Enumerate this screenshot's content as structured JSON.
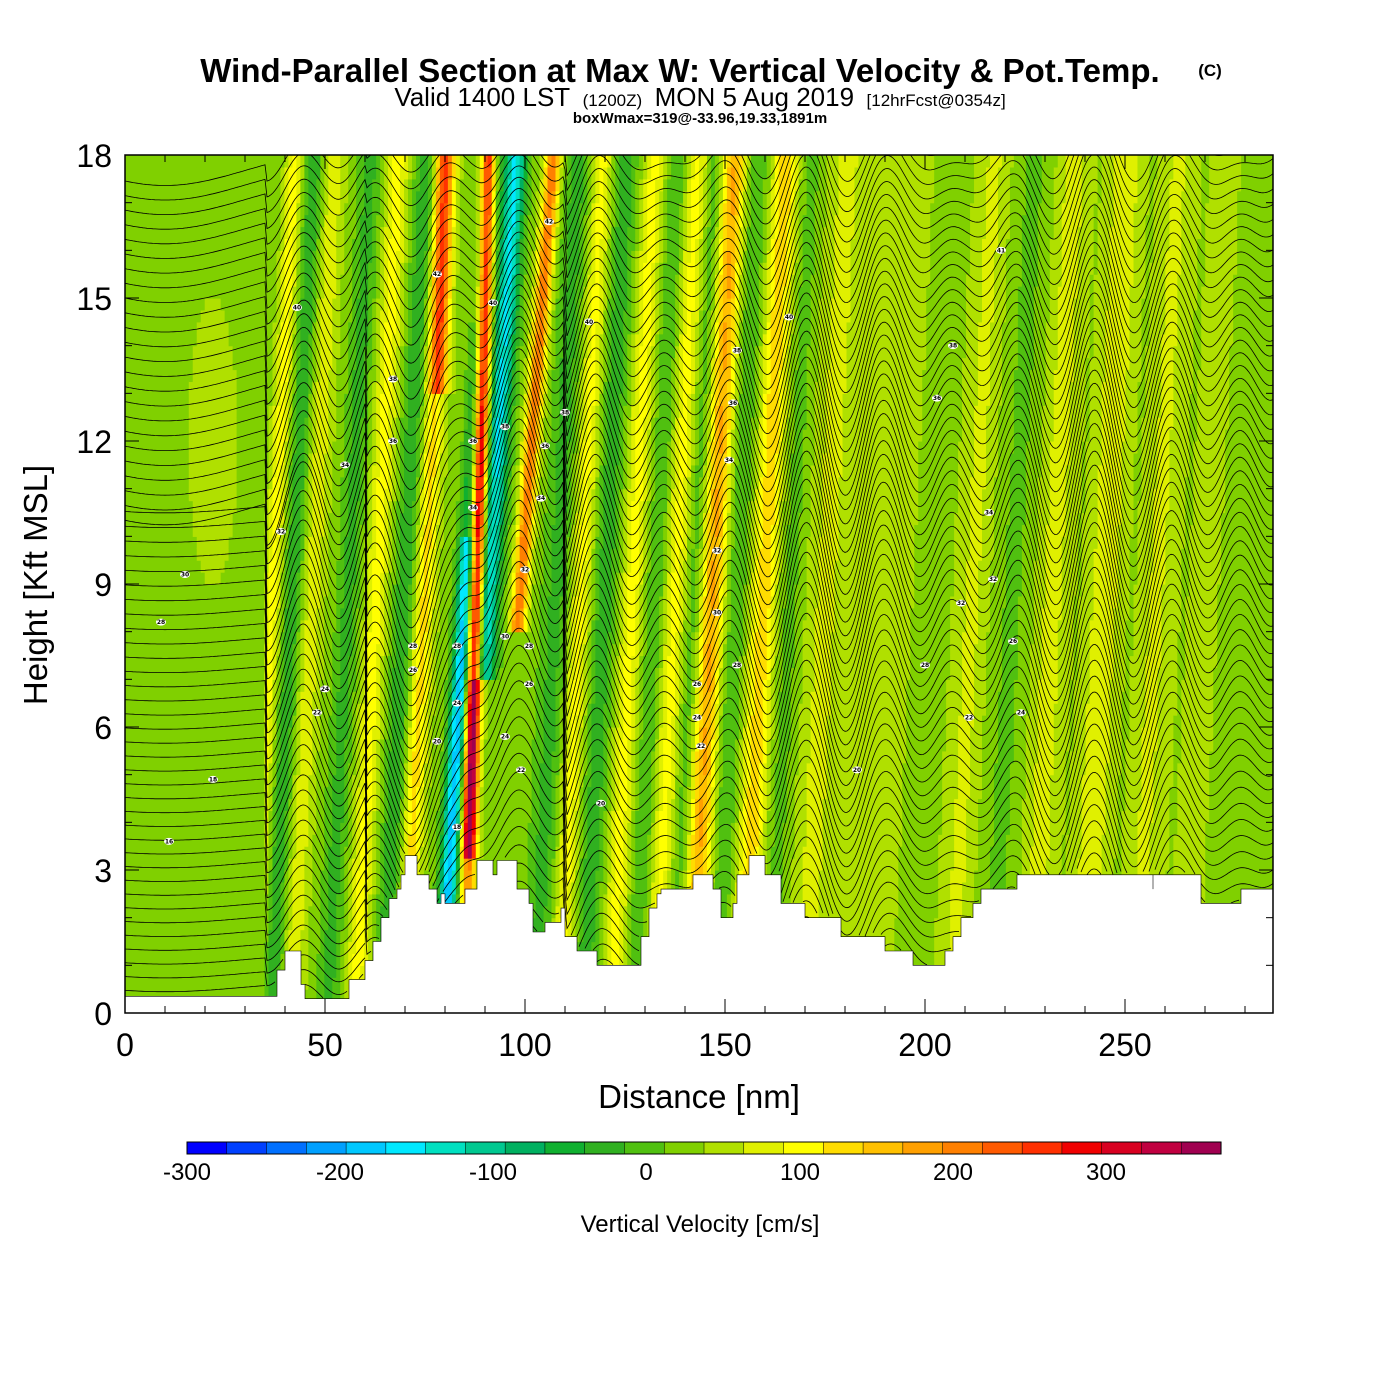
{
  "title": {
    "main": "Wind-Parallel Section at Max W: Vertical Velocity & Pot.Temp.",
    "copyright": "(C)",
    "valid_a": "Valid 1400 LST",
    "valid_b": "(1200Z)",
    "valid_c": "MON 5 Aug 2019",
    "valid_d": "[12hrFcst@0354z]",
    "box_line": "boxWmax=319@-33.96,19.33,1891m"
  },
  "chart_data": {
    "type": "heatmap",
    "xlabel": "Distance [nm]",
    "ylabel": "Height [Kft MSL]",
    "xlim": [
      0,
      287
    ],
    "ylim": [
      0,
      18
    ],
    "x_ticks": [
      "0",
      "50",
      "100",
      "150",
      "200",
      "250"
    ],
    "y_ticks": [
      "0",
      "3",
      "6",
      "9",
      "12",
      "15",
      "18"
    ],
    "grid": false,
    "colorbar": {
      "title": "Vertical Velocity [cm/s]",
      "min": -300,
      "max": 375,
      "step": 25,
      "tick_labels": [
        "-300",
        "-200",
        "-100",
        "0",
        "100",
        "200",
        "300"
      ],
      "colors": [
        "#0000ff",
        "#0040ff",
        "#0070ff",
        "#00a0ff",
        "#00c8ff",
        "#00e8ff",
        "#00e0c0",
        "#00c890",
        "#00b060",
        "#10b030",
        "#30b020",
        "#50c010",
        "#80d000",
        "#b0e000",
        "#e0f000",
        "#ffff00",
        "#ffdc00",
        "#ffc000",
        "#ffa000",
        "#ff8000",
        "#ff5a00",
        "#ff3000",
        "#f00000",
        "#d80020",
        "#c00040",
        "#a00050"
      ]
    },
    "terrain_kft": [
      [
        0,
        0.35
      ],
      [
        36,
        0.35
      ],
      [
        38,
        0.9
      ],
      [
        40,
        1.3
      ],
      [
        43,
        1.3
      ],
      [
        44,
        0.6
      ],
      [
        45,
        0.3
      ],
      [
        55,
        0.3
      ],
      [
        56,
        0.7
      ],
      [
        60,
        1.1
      ],
      [
        62,
        1.5
      ],
      [
        64,
        2.0
      ],
      [
        66,
        2.4
      ],
      [
        68,
        2.6
      ],
      [
        69,
        2.9
      ],
      [
        70,
        3.3
      ],
      [
        72,
        3.3
      ],
      [
        73,
        2.9
      ],
      [
        76,
        2.6
      ],
      [
        78,
        2.3
      ],
      [
        79,
        2.5
      ],
      [
        80,
        2.3
      ],
      [
        82,
        2.3
      ],
      [
        85,
        2.6
      ],
      [
        88,
        3.2
      ],
      [
        91,
        3.2
      ],
      [
        92,
        2.9
      ],
      [
        93,
        3.2
      ],
      [
        97,
        3.2
      ],
      [
        98,
        2.6
      ],
      [
        101,
        2.3
      ],
      [
        102,
        1.7
      ],
      [
        104,
        1.7
      ],
      [
        105,
        1.9
      ],
      [
        108,
        1.9
      ],
      [
        109,
        2.2
      ],
      [
        110,
        1.6
      ],
      [
        113,
        1.3
      ],
      [
        117,
        1.3
      ],
      [
        118,
        1.0
      ],
      [
        128,
        1.0
      ],
      [
        129,
        1.6
      ],
      [
        131,
        2.2
      ],
      [
        133,
        2.5
      ],
      [
        134,
        2.6
      ],
      [
        141,
        2.6
      ],
      [
        142,
        2.9
      ],
      [
        146,
        2.9
      ],
      [
        147,
        2.6
      ],
      [
        149,
        2.0
      ],
      [
        151,
        2.0
      ],
      [
        152,
        2.3
      ],
      [
        153,
        2.9
      ],
      [
        156,
        3.3
      ],
      [
        159,
        3.3
      ],
      [
        160,
        2.9
      ],
      [
        163,
        2.9
      ],
      [
        164,
        2.3
      ],
      [
        168,
        2.3
      ],
      [
        170,
        2.0
      ],
      [
        178,
        2.0
      ],
      [
        179,
        1.6
      ],
      [
        189,
        1.6
      ],
      [
        190,
        1.3
      ],
      [
        196,
        1.3
      ],
      [
        197,
        1.0
      ],
      [
        203,
        1.0
      ],
      [
        205,
        1.3
      ],
      [
        207,
        1.6
      ],
      [
        209,
        2.0
      ],
      [
        212,
        2.3
      ],
      [
        214,
        2.6
      ],
      [
        222,
        2.6
      ],
      [
        223,
        2.9
      ],
      [
        256,
        2.9
      ],
      [
        257,
        2.6
      ],
      [
        257,
        2.9
      ],
      [
        268,
        2.9
      ],
      [
        269,
        2.3
      ],
      [
        278,
        2.3
      ],
      [
        279,
        2.6
      ],
      [
        287,
        2.6
      ]
    ],
    "theta_contour_labels": [
      {
        "x": 15,
        "h": 9.2,
        "t": "30"
      },
      {
        "x": 9,
        "h": 8.2,
        "t": "28"
      },
      {
        "x": 22,
        "h": 4.9,
        "t": "18"
      },
      {
        "x": 11,
        "h": 3.6,
        "t": "16"
      },
      {
        "x": 50,
        "h": 6.8,
        "t": "24"
      },
      {
        "x": 48,
        "h": 6.3,
        "t": "22"
      },
      {
        "x": 43,
        "h": 14.8,
        "t": "40"
      },
      {
        "x": 67,
        "h": 13.3,
        "t": "38"
      },
      {
        "x": 67,
        "h": 12.0,
        "t": "36"
      },
      {
        "x": 55,
        "h": 11.5,
        "t": "34"
      },
      {
        "x": 39,
        "h": 10.1,
        "t": "32"
      },
      {
        "x": 78,
        "h": 15.5,
        "t": "42"
      },
      {
        "x": 92,
        "h": 14.9,
        "t": "40"
      },
      {
        "x": 106,
        "h": 16.6,
        "t": "42"
      },
      {
        "x": 116,
        "h": 14.5,
        "t": "40"
      },
      {
        "x": 110,
        "h": 12.6,
        "t": "38"
      },
      {
        "x": 105,
        "h": 11.9,
        "t": "36"
      },
      {
        "x": 104,
        "h": 10.8,
        "t": "34"
      },
      {
        "x": 87,
        "h": 12.0,
        "t": "36"
      },
      {
        "x": 95,
        "h": 12.3,
        "t": "38"
      },
      {
        "x": 87,
        "h": 10.6,
        "t": "34"
      },
      {
        "x": 100,
        "h": 9.3,
        "t": "32"
      },
      {
        "x": 95,
        "h": 7.9,
        "t": "30"
      },
      {
        "x": 101,
        "h": 7.7,
        "t": "28"
      },
      {
        "x": 101,
        "h": 6.9,
        "t": "26"
      },
      {
        "x": 95,
        "h": 5.8,
        "t": "24"
      },
      {
        "x": 99,
        "h": 5.1,
        "t": "22"
      },
      {
        "x": 72,
        "h": 7.7,
        "t": "28"
      },
      {
        "x": 72,
        "h": 7.2,
        "t": "26"
      },
      {
        "x": 83,
        "h": 7.7,
        "t": "28"
      },
      {
        "x": 83,
        "h": 6.5,
        "t": "24"
      },
      {
        "x": 78,
        "h": 5.7,
        "t": "20"
      },
      {
        "x": 83,
        "h": 3.9,
        "t": "18"
      },
      {
        "x": 119,
        "h": 4.4,
        "t": "20"
      },
      {
        "x": 153,
        "h": 13.9,
        "t": "38"
      },
      {
        "x": 152,
        "h": 12.8,
        "t": "36"
      },
      {
        "x": 151,
        "h": 11.6,
        "t": "34"
      },
      {
        "x": 148,
        "h": 9.7,
        "t": "32"
      },
      {
        "x": 148,
        "h": 8.4,
        "t": "30"
      },
      {
        "x": 153,
        "h": 7.3,
        "t": "28"
      },
      {
        "x": 143,
        "h": 6.9,
        "t": "26"
      },
      {
        "x": 143,
        "h": 6.2,
        "t": "24"
      },
      {
        "x": 144,
        "h": 5.6,
        "t": "22"
      },
      {
        "x": 166,
        "h": 14.6,
        "t": "40"
      },
      {
        "x": 219,
        "h": 16.0,
        "t": "41"
      },
      {
        "x": 207,
        "h": 14.0,
        "t": "38"
      },
      {
        "x": 203,
        "h": 12.9,
        "t": "36"
      },
      {
        "x": 216,
        "h": 10.5,
        "t": "34"
      },
      {
        "x": 217,
        "h": 9.1,
        "t": "32"
      },
      {
        "x": 209,
        "h": 8.6,
        "t": "32"
      },
      {
        "x": 222,
        "h": 7.8,
        "t": "26"
      },
      {
        "x": 200,
        "h": 7.3,
        "t": "28"
      },
      {
        "x": 211,
        "h": 6.2,
        "t": "22"
      },
      {
        "x": 224,
        "h": 6.3,
        "t": "24"
      },
      {
        "x": 183,
        "h": 5.1,
        "t": "20"
      }
    ]
  }
}
